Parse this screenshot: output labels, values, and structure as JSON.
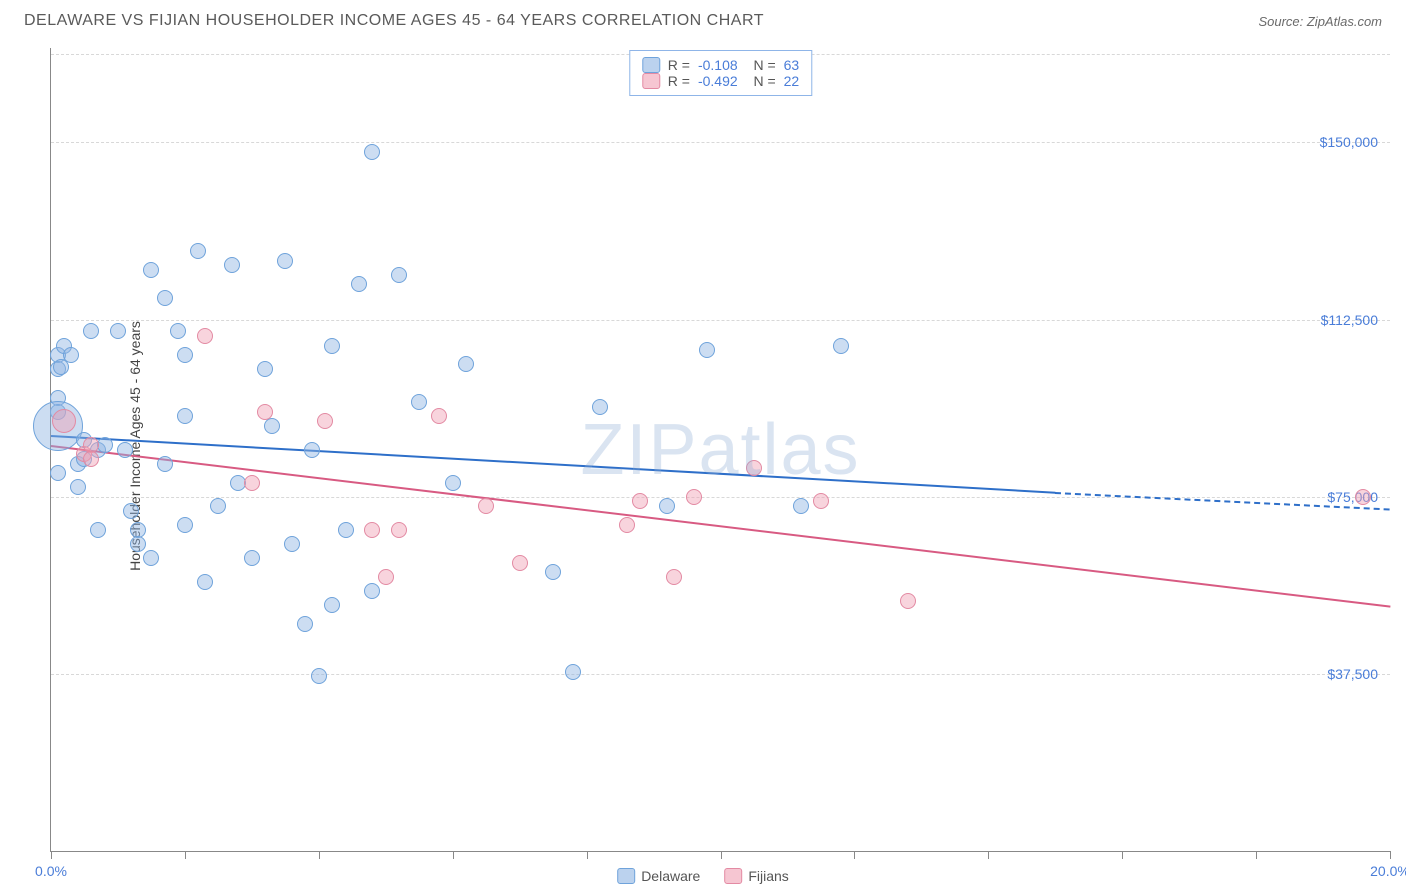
{
  "header": {
    "title": "DELAWARE VS FIJIAN HOUSEHOLDER INCOME AGES 45 - 64 YEARS CORRELATION CHART",
    "source": "Source: ZipAtlas.com"
  },
  "watermark": "ZIPatlas",
  "chart": {
    "type": "scatter",
    "ylabel": "Householder Income Ages 45 - 64 years",
    "xlim": [
      0,
      20
    ],
    "ylim": [
      0,
      170000
    ],
    "xtick_positions": [
      0,
      2,
      4,
      6,
      8,
      10,
      12,
      14,
      16,
      18,
      20
    ],
    "xtick_labels": {
      "0": "0.0%",
      "20": "20.0%"
    },
    "ytick_positions": [
      37500,
      75000,
      112500,
      150000
    ],
    "ytick_labels": [
      "$37,500",
      "$75,000",
      "$112,500",
      "$150,000"
    ],
    "grid_color": "#d8d8d8",
    "background_color": "#ffffff",
    "axis_color": "#888888",
    "label_color": "#4a7dd8",
    "series": [
      {
        "name": "Delaware",
        "color_fill": "rgba(142,180,227,0.45)",
        "color_stroke": "#6fa3db",
        "trend_color": "#2e6fc9",
        "R": "-0.108",
        "N": "63",
        "trend": {
          "x1": 0,
          "y1": 88000,
          "x2": 15,
          "y2": 76000,
          "dash_x2": 20,
          "dash_y2": 72500
        },
        "points": [
          {
            "x": 0.1,
            "y": 105000,
            "r": 8
          },
          {
            "x": 0.1,
            "y": 102000,
            "r": 8
          },
          {
            "x": 0.1,
            "y": 96000,
            "r": 8
          },
          {
            "x": 0.1,
            "y": 93000,
            "r": 8
          },
          {
            "x": 0.1,
            "y": 90000,
            "r": 25
          },
          {
            "x": 0.1,
            "y": 80000,
            "r": 8
          },
          {
            "x": 0.15,
            "y": 102500,
            "r": 8
          },
          {
            "x": 0.2,
            "y": 107000,
            "r": 8
          },
          {
            "x": 0.3,
            "y": 105000,
            "r": 8
          },
          {
            "x": 0.4,
            "y": 82000,
            "r": 8
          },
          {
            "x": 0.4,
            "y": 77000,
            "r": 8
          },
          {
            "x": 0.5,
            "y": 87000,
            "r": 8
          },
          {
            "x": 0.5,
            "y": 83000,
            "r": 8
          },
          {
            "x": 0.6,
            "y": 110000,
            "r": 8
          },
          {
            "x": 0.7,
            "y": 85000,
            "r": 8
          },
          {
            "x": 0.7,
            "y": 68000,
            "r": 8
          },
          {
            "x": 0.8,
            "y": 86000,
            "r": 8
          },
          {
            "x": 1.0,
            "y": 110000,
            "r": 8
          },
          {
            "x": 1.1,
            "y": 85000,
            "r": 8
          },
          {
            "x": 1.2,
            "y": 72000,
            "r": 8
          },
          {
            "x": 1.3,
            "y": 68000,
            "r": 8
          },
          {
            "x": 1.3,
            "y": 65000,
            "r": 8
          },
          {
            "x": 1.5,
            "y": 123000,
            "r": 8
          },
          {
            "x": 1.5,
            "y": 62000,
            "r": 8
          },
          {
            "x": 1.7,
            "y": 117000,
            "r": 8
          },
          {
            "x": 1.7,
            "y": 82000,
            "r": 8
          },
          {
            "x": 1.9,
            "y": 110000,
            "r": 8
          },
          {
            "x": 2.0,
            "y": 105000,
            "r": 8
          },
          {
            "x": 2.0,
            "y": 92000,
            "r": 8
          },
          {
            "x": 2.0,
            "y": 69000,
            "r": 8
          },
          {
            "x": 2.2,
            "y": 127000,
            "r": 8
          },
          {
            "x": 2.3,
            "y": 57000,
            "r": 8
          },
          {
            "x": 2.5,
            "y": 73000,
            "r": 8
          },
          {
            "x": 2.7,
            "y": 124000,
            "r": 8
          },
          {
            "x": 2.8,
            "y": 78000,
            "r": 8
          },
          {
            "x": 3.0,
            "y": 62000,
            "r": 8
          },
          {
            "x": 3.2,
            "y": 102000,
            "r": 8
          },
          {
            "x": 3.3,
            "y": 90000,
            "r": 8
          },
          {
            "x": 3.5,
            "y": 125000,
            "r": 8
          },
          {
            "x": 3.6,
            "y": 65000,
            "r": 8
          },
          {
            "x": 3.8,
            "y": 48000,
            "r": 8
          },
          {
            "x": 3.9,
            "y": 85000,
            "r": 8
          },
          {
            "x": 4.0,
            "y": 37000,
            "r": 8
          },
          {
            "x": 4.2,
            "y": 107000,
            "r": 8
          },
          {
            "x": 4.2,
            "y": 52000,
            "r": 8
          },
          {
            "x": 4.4,
            "y": 68000,
            "r": 8
          },
          {
            "x": 4.6,
            "y": 120000,
            "r": 8
          },
          {
            "x": 4.8,
            "y": 55000,
            "r": 8
          },
          {
            "x": 4.8,
            "y": 148000,
            "r": 8
          },
          {
            "x": 5.2,
            "y": 122000,
            "r": 8
          },
          {
            "x": 5.5,
            "y": 95000,
            "r": 8
          },
          {
            "x": 6.0,
            "y": 78000,
            "r": 8
          },
          {
            "x": 6.2,
            "y": 103000,
            "r": 8
          },
          {
            "x": 7.5,
            "y": 59000,
            "r": 8
          },
          {
            "x": 7.8,
            "y": 38000,
            "r": 8
          },
          {
            "x": 8.2,
            "y": 94000,
            "r": 8
          },
          {
            "x": 9.2,
            "y": 73000,
            "r": 8
          },
          {
            "x": 9.8,
            "y": 106000,
            "r": 8
          },
          {
            "x": 11.2,
            "y": 73000,
            "r": 8
          },
          {
            "x": 11.8,
            "y": 107000,
            "r": 8
          }
        ]
      },
      {
        "name": "Fijians",
        "color_fill": "rgba(240,160,180,0.45)",
        "color_stroke": "#e38aa3",
        "trend_color": "#d85a82",
        "R": "-0.492",
        "N": "22",
        "trend": {
          "x1": 0,
          "y1": 86000,
          "x2": 20,
          "y2": 52000
        },
        "points": [
          {
            "x": 0.2,
            "y": 91000,
            "r": 12
          },
          {
            "x": 0.5,
            "y": 84000,
            "r": 8
          },
          {
            "x": 0.6,
            "y": 86000,
            "r": 8
          },
          {
            "x": 0.6,
            "y": 83000,
            "r": 8
          },
          {
            "x": 2.3,
            "y": 109000,
            "r": 8
          },
          {
            "x": 3.0,
            "y": 78000,
            "r": 8
          },
          {
            "x": 3.2,
            "y": 93000,
            "r": 8
          },
          {
            "x": 4.1,
            "y": 91000,
            "r": 8
          },
          {
            "x": 4.8,
            "y": 68000,
            "r": 8
          },
          {
            "x": 5.0,
            "y": 58000,
            "r": 8
          },
          {
            "x": 5.2,
            "y": 68000,
            "r": 8
          },
          {
            "x": 5.8,
            "y": 92000,
            "r": 8
          },
          {
            "x": 6.5,
            "y": 73000,
            "r": 8
          },
          {
            "x": 7.0,
            "y": 61000,
            "r": 8
          },
          {
            "x": 8.6,
            "y": 69000,
            "r": 8
          },
          {
            "x": 8.8,
            "y": 74000,
            "r": 8
          },
          {
            "x": 9.3,
            "y": 58000,
            "r": 8
          },
          {
            "x": 9.6,
            "y": 75000,
            "r": 8
          },
          {
            "x": 10.5,
            "y": 81000,
            "r": 8
          },
          {
            "x": 11.5,
            "y": 74000,
            "r": 8
          },
          {
            "x": 12.8,
            "y": 53000,
            "r": 8
          },
          {
            "x": 19.6,
            "y": 75000,
            "r": 8
          }
        ]
      }
    ]
  },
  "legend_bottom": [
    {
      "label": "Delaware",
      "fill": "rgba(142,180,227,0.6)",
      "stroke": "#6fa3db"
    },
    {
      "label": "Fijians",
      "fill": "rgba(240,160,180,0.6)",
      "stroke": "#e38aa3"
    }
  ]
}
